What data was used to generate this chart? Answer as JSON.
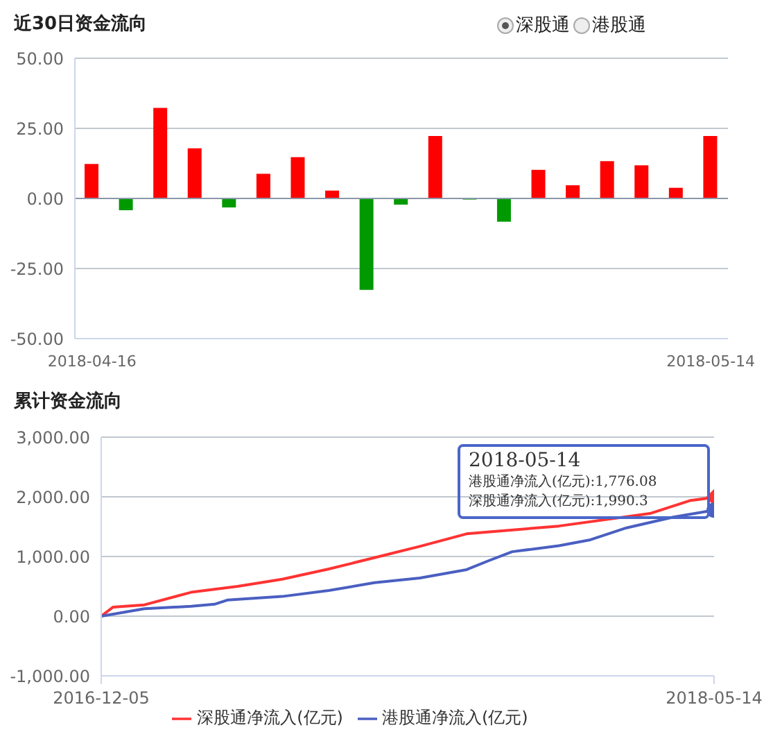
{
  "chart_data": [
    {
      "type": "bar",
      "title": "近30日资金流向",
      "annotations": [
        "深股通",
        "港股通"
      ],
      "categories": [
        "2018-04-16",
        null,
        null,
        null,
        null,
        null,
        null,
        null,
        null,
        null,
        null,
        null,
        null,
        null,
        null,
        null,
        null,
        null,
        "2018-05-14"
      ],
      "values": [
        12.3,
        -4.2,
        32.3,
        17.9,
        -3.2,
        8.8,
        14.7,
        2.8,
        -32.6,
        -2.2,
        22.3,
        -0.4,
        -8.3,
        10.2,
        4.7,
        13.3,
        11.8,
        3.8,
        22.3
      ],
      "colors": [
        "#ff0000",
        "#009900",
        "#ff0000",
        "#ff0000",
        "#009900",
        "#ff0000",
        "#ff0000",
        "#ff0000",
        "#009900",
        "#009900",
        "#ff0000",
        "#009900",
        "#009900",
        "#ff0000",
        "#ff0000",
        "#ff0000",
        "#ff0000",
        "#ff0000",
        "#ff0000"
      ],
      "ylim": [
        -50,
        50
      ],
      "yticks": [
        {
          "value": -50,
          "label": "-50.00"
        },
        {
          "value": -25,
          "label": "-25.00"
        },
        {
          "value": 0,
          "label": "0.00"
        },
        {
          "value": 25,
          "label": "25.00"
        },
        {
          "value": 50,
          "label": "50.00"
        }
      ],
      "grid": "y"
    },
    {
      "type": "line",
      "title": "累计资金流向",
      "legend": "bottom",
      "annotations": [
        "2018-05-14",
        "港股通净流入(亿元):1,776.08",
        "深股通净流入(亿元):1,990.3"
      ],
      "xlim": [
        "2016-12-05",
        "2018-05-14"
      ],
      "xticks": [
        "2016-12-05",
        "2018-05-14"
      ],
      "ylim": [
        -1000,
        3000
      ],
      "yticks": [
        {
          "value": -1000,
          "label": "-1,000.00"
        },
        {
          "value": 0,
          "label": "0.00"
        },
        {
          "value": 1000,
          "label": "1,000.00"
        },
        {
          "value": 2000,
          "label": "2,000.00"
        },
        {
          "value": 3000,
          "label": "3,000.00"
        }
      ],
      "grid": "y",
      "series": [
        {
          "name": "深股通净流入(亿元)",
          "color": "#ff3333",
          "x": [
            "2016-12-05",
            "2016-12-15",
            "2017-01-11",
            "2017-02-20",
            "2017-04-01",
            "2017-05-09",
            "2017-06-18",
            "2017-07-27",
            "2017-09-04",
            "2017-10-14",
            "2018-01-01",
            "2018-03-20",
            "2018-04-24",
            "2018-05-14"
          ],
          "values": [
            0,
            150,
            190,
            400,
            500,
            620,
            790,
            980,
            1170,
            1380,
            1510,
            1720,
            1940,
            1990.3
          ]
        },
        {
          "name": "港股通净流入(亿元)",
          "color": "#4a5fc1",
          "x": [
            "2016-12-05",
            "2017-01-11",
            "2017-02-20",
            "2017-03-12",
            "2017-03-23",
            "2017-05-09",
            "2017-06-18",
            "2017-07-27",
            "2017-09-04",
            "2017-10-14",
            "2017-11-02",
            "2017-11-22",
            "2018-01-01",
            "2018-01-28",
            "2018-02-28",
            "2018-04-09",
            "2018-05-14"
          ],
          "values": [
            0,
            125,
            165,
            200,
            270,
            330,
            430,
            560,
            640,
            780,
            930,
            1080,
            1180,
            1280,
            1480,
            1660,
            1776.08
          ]
        }
      ]
    }
  ]
}
